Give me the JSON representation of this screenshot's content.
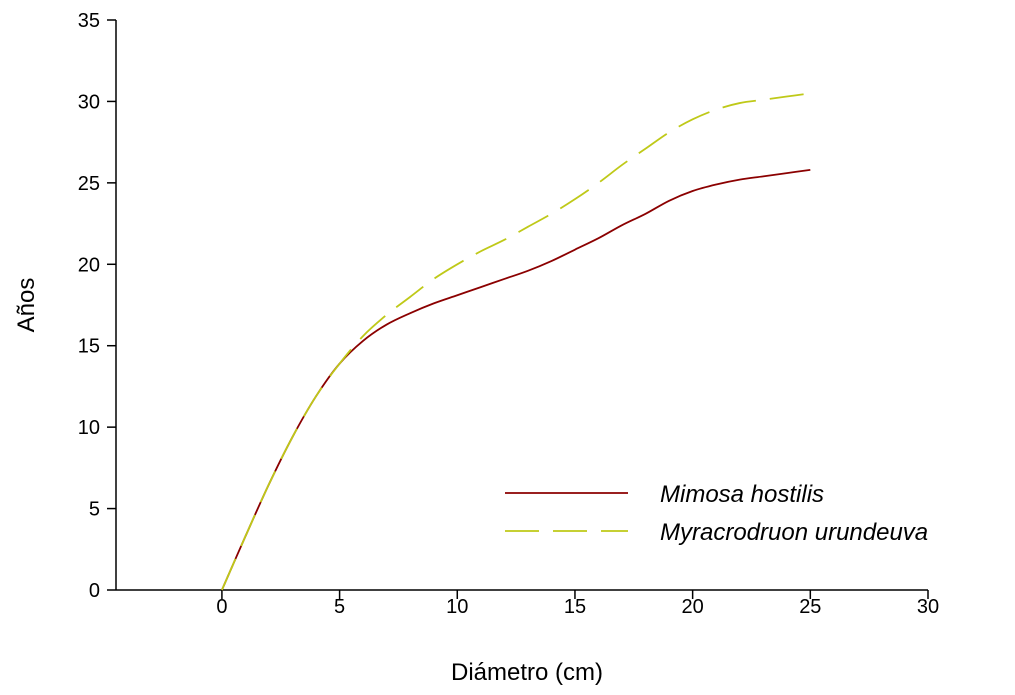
{
  "chart_data": {
    "type": "line",
    "xlabel": "Diámetro (cm)",
    "ylabel": "Años",
    "xlim": [
      -4.5,
      30
    ],
    "ylim": [
      0,
      35
    ],
    "x_ticks": [
      0,
      5,
      10,
      15,
      20,
      25,
      30
    ],
    "y_ticks": [
      0,
      5,
      10,
      15,
      20,
      25,
      30,
      35
    ],
    "grid": false,
    "legend_position": "bottom-right",
    "series": [
      {
        "name": "Mimosa hostilis",
        "color": "#8b0000",
        "dash": "solid",
        "x": [
          0,
          1,
          2,
          3,
          4,
          5,
          6,
          7,
          8,
          9,
          10,
          11,
          12,
          13,
          14,
          15,
          16,
          17,
          18,
          19,
          20,
          21,
          22,
          23,
          24,
          25
        ],
        "y": [
          0,
          3.3,
          6.5,
          9.4,
          11.9,
          13.9,
          15.3,
          16.3,
          17.0,
          17.6,
          18.1,
          18.6,
          19.1,
          19.6,
          20.2,
          20.9,
          21.6,
          22.4,
          23.1,
          23.9,
          24.5,
          24.9,
          25.2,
          25.4,
          25.6,
          25.8
        ]
      },
      {
        "name": "Myracrodruon urundeuva",
        "color": "#bfc918",
        "dash": "long-dash",
        "x": [
          0,
          1,
          2,
          3,
          4,
          5,
          6,
          7,
          8,
          9,
          10,
          11,
          12,
          13,
          14,
          15,
          16,
          17,
          18,
          19,
          20,
          21,
          22,
          23,
          24,
          25
        ],
        "y": [
          0,
          3.3,
          6.5,
          9.4,
          11.9,
          13.9,
          15.6,
          16.9,
          18.0,
          19.1,
          20.0,
          20.8,
          21.5,
          22.3,
          23.1,
          24.0,
          25.0,
          26.1,
          27.1,
          28.1,
          28.9,
          29.5,
          29.9,
          30.1,
          30.3,
          30.5
        ]
      }
    ]
  },
  "colors": {
    "axis": "#000000",
    "background": "#ffffff"
  }
}
